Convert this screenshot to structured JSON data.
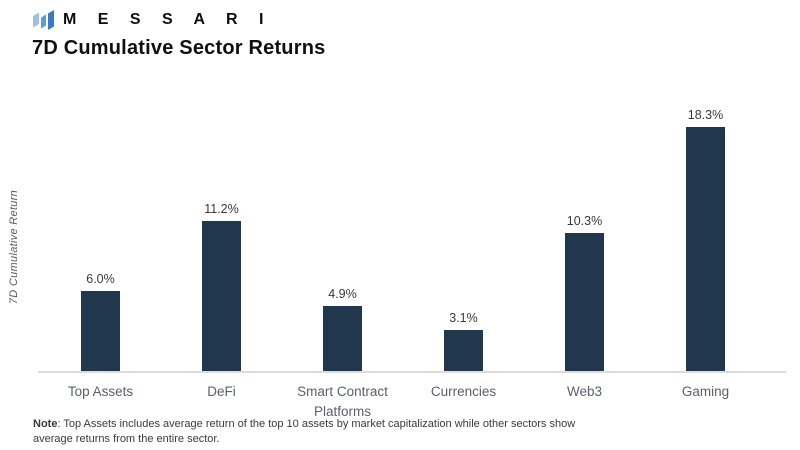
{
  "header": {
    "brand": "M E S S A R I",
    "title": "7D Cumulative Sector Returns"
  },
  "logo": {
    "name": "messari-logo",
    "colors": {
      "left_bar": "#9cc1e8",
      "middle_bar": "#5d9ad8",
      "right_bar": "#3a79c6"
    }
  },
  "chart_data": {
    "type": "bar",
    "title": "7D Cumulative Sector Returns",
    "categories": [
      "Top Assets",
      "DeFi",
      "Smart Contract Platforms",
      "Currencies",
      "Web3",
      "Gaming"
    ],
    "values": [
      6.0,
      11.2,
      4.9,
      3.1,
      10.3,
      18.3
    ],
    "value_labels": [
      "6.0%",
      "11.2%",
      "4.9%",
      "3.1%",
      "10.3%",
      "18.3%"
    ],
    "xlabel": "",
    "ylabel": "7D Cumulative Return",
    "ylim": [
      0,
      20
    ],
    "grid": false,
    "legend": "none",
    "bar_color": "#21374e",
    "axis_line_color": "#dcdcdc",
    "label_color": "#595f6b"
  },
  "footnote": {
    "bold": "Note",
    "text": ": Top Assets includes average return of the top 10 assets by market capitalization while other sectors show average returns from the entire sector."
  }
}
